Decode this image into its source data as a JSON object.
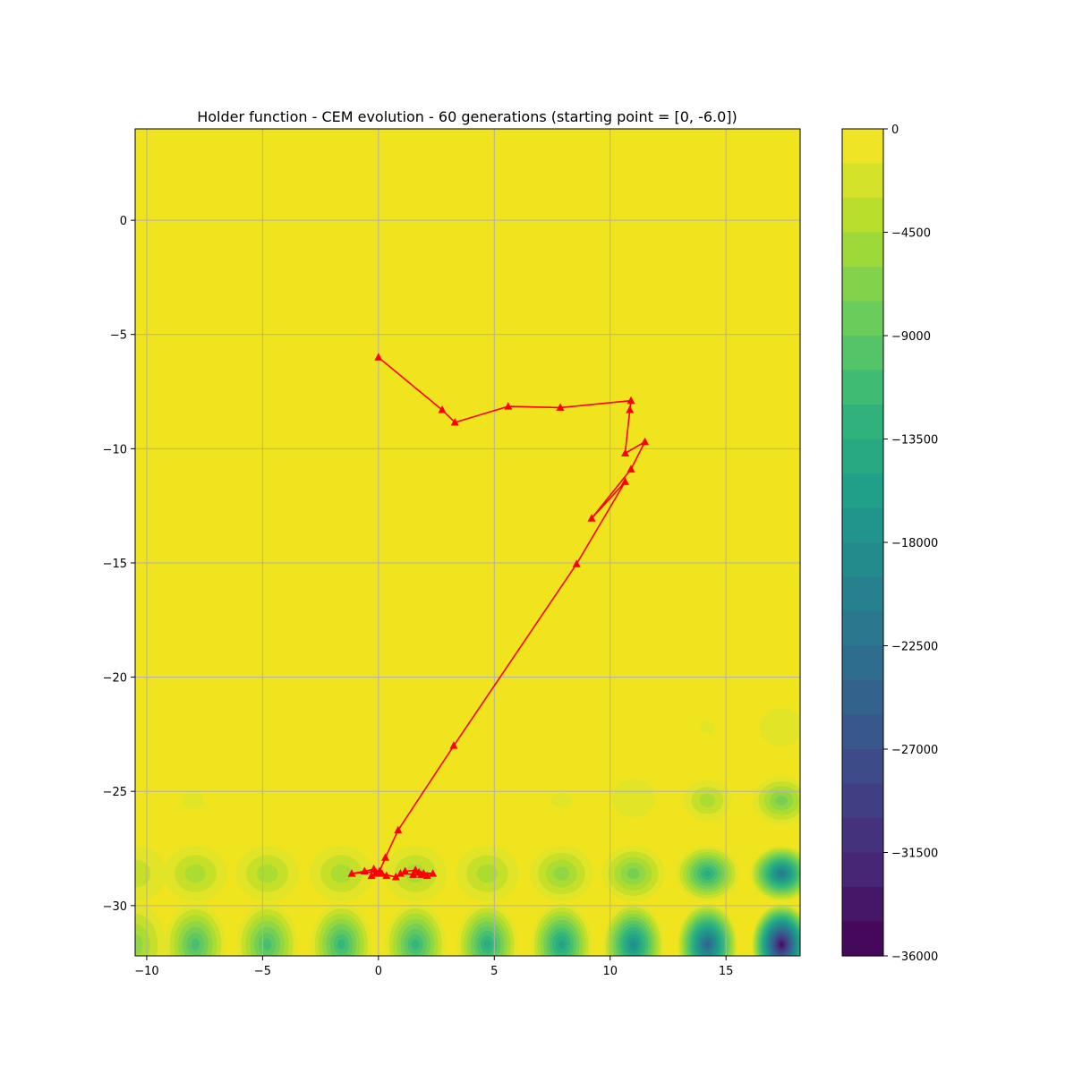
{
  "chart_data": {
    "type": "contour-line",
    "title": "Holder function - CEM evolution - 60 generations (starting point = [0, -6.0])",
    "xlim": [
      -10.5,
      18.2
    ],
    "ylim": [
      -32.2,
      4.0
    ],
    "x_ticks": [
      -10,
      -5,
      0,
      5,
      10,
      15
    ],
    "y_ticks": [
      0,
      -5,
      -10,
      -15,
      -20,
      -25,
      -30
    ],
    "grid": true,
    "colorbar": {
      "range": [
        -36000,
        0
      ],
      "tick_values": [
        0,
        -4500,
        -9000,
        -13500,
        -18000,
        -22500,
        -27000,
        -31500,
        -36000
      ],
      "tick_labels": [
        "0",
        "−4500",
        "−9000",
        "−13500",
        "−18000",
        "−22500",
        "−27000",
        "−31500",
        "−36000"
      ],
      "levels": 24,
      "colormap": "viridis"
    },
    "series": [
      {
        "color": "#ff0000",
        "marker": "triangle",
        "points": [
          [
            0,
            -6.0
          ],
          [
            2.75,
            -8.3
          ],
          [
            3.3,
            -8.85
          ],
          [
            5.6,
            -8.15
          ],
          [
            7.85,
            -8.2
          ],
          [
            10.9,
            -7.9
          ],
          [
            10.85,
            -8.3
          ],
          [
            10.65,
            -10.2
          ],
          [
            11.5,
            -9.7
          ],
          [
            10.9,
            -10.9
          ],
          [
            9.2,
            -13.05
          ],
          [
            10.65,
            -11.45
          ],
          [
            8.55,
            -15.05
          ],
          [
            3.25,
            -23.0
          ],
          [
            0.85,
            -26.7
          ],
          [
            0.3,
            -27.9
          ],
          [
            0.05,
            -28.5
          ],
          [
            -1.15,
            -28.6
          ],
          [
            -0.6,
            -28.5
          ],
          [
            -0.2,
            -28.4
          ],
          [
            0.15,
            -28.6
          ],
          [
            -0.3,
            -28.7
          ],
          [
            0.35,
            -28.7
          ],
          [
            -0.1,
            -28.55
          ],
          [
            0.75,
            -28.75
          ],
          [
            1.15,
            -28.5
          ],
          [
            1.6,
            -28.45
          ],
          [
            1.95,
            -28.6
          ],
          [
            1.5,
            -28.65
          ],
          [
            2.35,
            -28.6
          ],
          [
            1.75,
            -28.55
          ],
          [
            2.1,
            -28.7
          ],
          [
            1.85,
            -28.65
          ],
          [
            0.95,
            -28.6
          ]
        ]
      }
    ]
  }
}
